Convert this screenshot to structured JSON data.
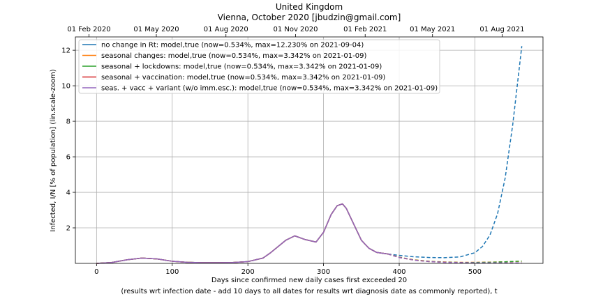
{
  "title": "United Kingdom",
  "subtitle": "Vienna, October 2020 [jbudzin@gmail.com]",
  "ylabel_html": "Infected, I/N [% of population] (lin.scale-zoom)",
  "xlabel_line1": "Days since confirmed new daily cases first exceeded 20",
  "xlabel_line2": "(results wrt infection date - add 10 days to all dates for results wrt diagnosis date as commonly reported), t",
  "chart_data": {
    "type": "line",
    "xlim": [
      -28,
      590
    ],
    "ylim": [
      0,
      12.75
    ],
    "grid": true,
    "legend_position": "top-left",
    "x_ticks": [
      0,
      100,
      200,
      300,
      400,
      500
    ],
    "y_ticks": [
      2,
      4,
      6,
      8,
      10,
      12
    ],
    "top_axis_labels": [
      {
        "x": -10,
        "label": "01 Feb 2020"
      },
      {
        "x": 79,
        "label": "01 May 2020"
      },
      {
        "x": 171,
        "label": "01 Aug 2020"
      },
      {
        "x": 263,
        "label": "01 Nov 2020"
      },
      {
        "x": 355,
        "label": "01 Feb 2021"
      },
      {
        "x": 444,
        "label": "01 May 2021"
      },
      {
        "x": 536,
        "label": "01 Aug 2021"
      }
    ],
    "history": {
      "x": [
        0,
        20,
        40,
        60,
        80,
        100,
        120,
        140,
        160,
        180,
        200,
        220,
        230,
        240,
        250,
        262,
        275,
        290,
        300,
        310,
        318,
        325,
        330,
        340,
        350,
        360,
        370,
        385
      ],
      "y": [
        0.0,
        0.05,
        0.2,
        0.3,
        0.25,
        0.12,
        0.06,
        0.04,
        0.04,
        0.05,
        0.1,
        0.3,
        0.6,
        0.95,
        1.3,
        1.55,
        1.35,
        1.2,
        1.75,
        2.75,
        3.25,
        3.35,
        3.1,
        2.2,
        1.3,
        0.85,
        0.62,
        0.53
      ]
    },
    "series": [
      {
        "name": "no change in Rt: model,true (now=0.534%, max=12.230% on 2021-09-04)",
        "color": "#1f77b4",
        "forecast": {
          "x": [
            385,
            400,
            420,
            440,
            460,
            480,
            500,
            510,
            520,
            530,
            540,
            550,
            562
          ],
          "y": [
            0.53,
            0.45,
            0.37,
            0.33,
            0.32,
            0.36,
            0.6,
            0.95,
            1.6,
            2.8,
            4.8,
            7.8,
            12.23
          ]
        }
      },
      {
        "name": "seasonal changes: model,true (now=0.534%, max=3.342% on 2021-01-09)",
        "color": "#ff7f0e",
        "forecast": {
          "x": [
            385,
            400,
            420,
            440,
            460,
            480,
            500,
            520,
            540,
            562
          ],
          "y": [
            0.53,
            0.35,
            0.2,
            0.12,
            0.08,
            0.06,
            0.06,
            0.07,
            0.09,
            0.12
          ]
        }
      },
      {
        "name": "seasonal + lockdowns: model,true (now=0.534%, max=3.342% on 2021-01-09)",
        "color": "#2ca02c",
        "forecast": {
          "x": [
            385,
            400,
            420,
            440,
            460,
            480,
            500,
            520,
            540,
            562
          ],
          "y": [
            0.53,
            0.34,
            0.19,
            0.11,
            0.07,
            0.05,
            0.05,
            0.06,
            0.09,
            0.13
          ]
        }
      },
      {
        "name": "seasonal + vaccination: model,true (now=0.534%, max=3.342% on 2021-01-09)",
        "color": "#d62728",
        "forecast": {
          "x": [
            385,
            400,
            420,
            440,
            460,
            480,
            500,
            520,
            540,
            562
          ],
          "y": [
            0.53,
            0.33,
            0.18,
            0.1,
            0.06,
            0.04,
            0.03,
            0.03,
            0.03,
            0.03
          ]
        }
      },
      {
        "name": "seas. + vacc + variant (w/o imm.esc.): model,true (now=0.534%, max=3.342% on 2021-01-09)",
        "color": "#9467bd",
        "forecast": {
          "x": [
            385,
            400,
            420,
            440,
            460,
            480,
            500,
            520,
            540,
            562
          ],
          "y": [
            0.53,
            0.33,
            0.18,
            0.1,
            0.06,
            0.04,
            0.03,
            0.03,
            0.03,
            0.03
          ]
        }
      }
    ]
  }
}
